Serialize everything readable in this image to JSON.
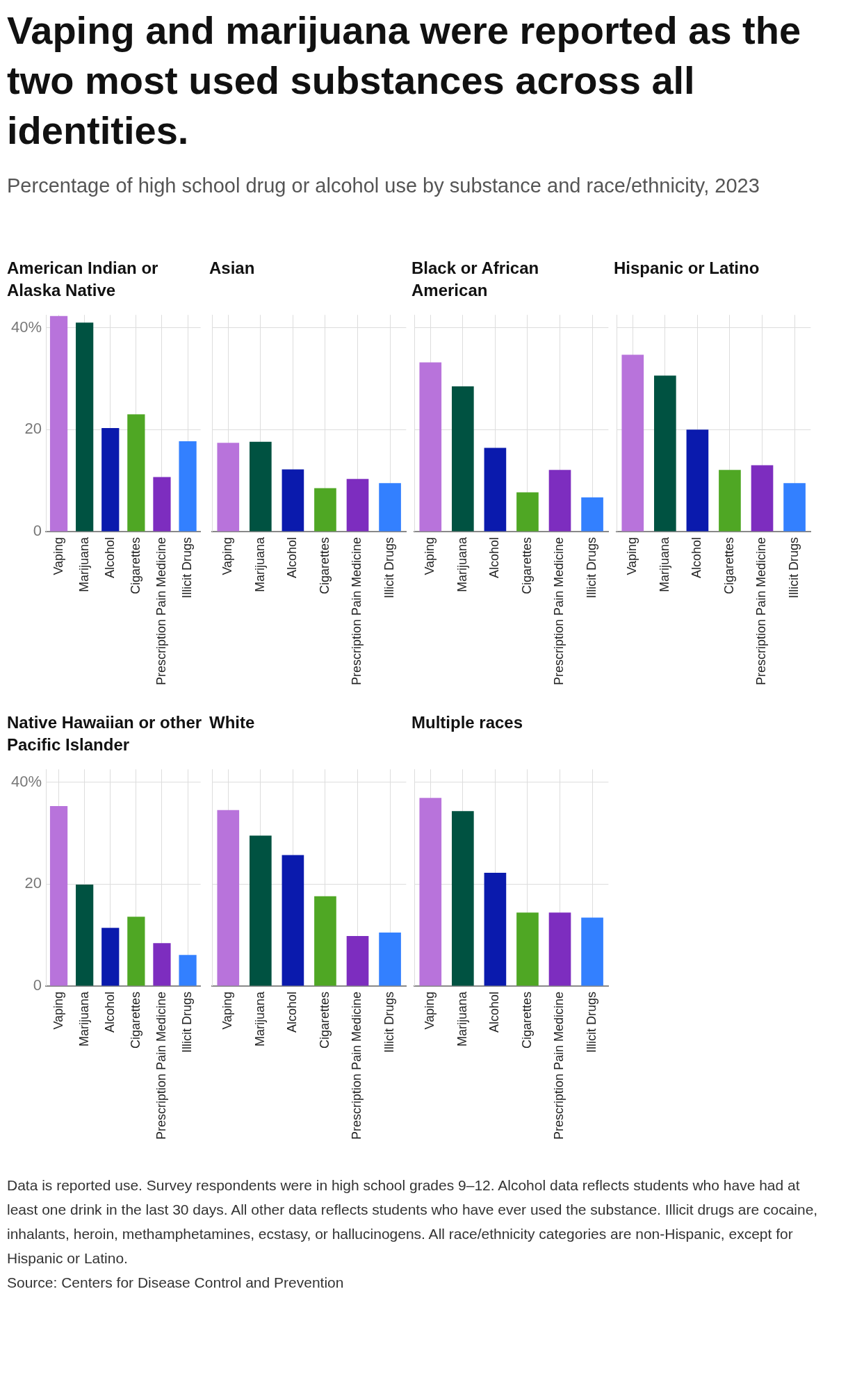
{
  "chart_data": [
    {
      "type": "other",
      "title": "Vaping and marijuana were reported as the two most used substances across all identities.",
      "subtitle": "Percentage of high school drug or alcohol use by substance and race/ethnicity, 2023"
    },
    {
      "type": "bar",
      "title": "American Indian or Alaska Native",
      "categories": [
        "Vaping",
        "Marijuana",
        "Alcohol",
        "Cigarettes",
        "Prescription Pain Medicine",
        "Illicit Drugs"
      ],
      "values": [
        42.3,
        41.0,
        20.3,
        23.0,
        10.7,
        17.7
      ],
      "colors": [
        "#b873db",
        "#005241",
        "#0a1aad",
        "#4fa724",
        "#7d2dbf",
        "#3380ff"
      ],
      "ylim": [
        0,
        42.5
      ],
      "yticks": [
        0,
        20,
        {
          "value": 40,
          "label": "40%"
        }
      ],
      "grid": true
    },
    {
      "type": "bar",
      "title": "Asian",
      "categories": [
        "Vaping",
        "Marijuana",
        "Alcohol",
        "Cigarettes",
        "Prescription Pain Medicine",
        "Illicit Drugs"
      ],
      "values": [
        17.4,
        17.6,
        12.2,
        8.5,
        10.3,
        9.5
      ],
      "colors": [
        "#b873db",
        "#005241",
        "#0a1aad",
        "#4fa724",
        "#7d2dbf",
        "#3380ff"
      ],
      "ylim": [
        0,
        42.5
      ],
      "yticks": [
        0,
        20,
        40
      ],
      "grid": true,
      "tick_labels": "x"
    },
    {
      "type": "bar",
      "title": "Black or African American",
      "categories": [
        "Vaping",
        "Marijuana",
        "Alcohol",
        "Cigarettes",
        "Prescription Pain Medicine",
        "Illicit Drugs"
      ],
      "values": [
        33.2,
        28.5,
        16.4,
        7.7,
        12.1,
        6.7
      ],
      "colors": [
        "#b873db",
        "#005241",
        "#0a1aad",
        "#4fa724",
        "#7d2dbf",
        "#3380ff"
      ],
      "ylim": [
        0,
        42.5
      ],
      "yticks": [
        0,
        20,
        40
      ],
      "grid": true,
      "tick_labels": "x"
    },
    {
      "type": "bar",
      "title": "Hispanic or Latino",
      "categories": [
        "Vaping",
        "Marijuana",
        "Alcohol",
        "Cigarettes",
        "Prescription Pain Medicine",
        "Illicit Drugs"
      ],
      "values": [
        34.7,
        30.6,
        20.0,
        12.1,
        13.0,
        9.5
      ],
      "colors": [
        "#b873db",
        "#005241",
        "#0a1aad",
        "#4fa724",
        "#7d2dbf",
        "#3380ff"
      ],
      "ylim": [
        0,
        42.5
      ],
      "yticks": [
        0,
        20,
        40
      ],
      "grid": true,
      "tick_labels": "x"
    },
    {
      "type": "bar",
      "title": "Native Hawaiian or other Pacific Islander",
      "categories": [
        "Vaping",
        "Marijuana",
        "Alcohol",
        "Cigarettes",
        "Prescription Pain Medicine",
        "Illicit Drugs"
      ],
      "values": [
        35.3,
        19.9,
        11.4,
        13.6,
        8.4,
        6.1
      ],
      "colors": [
        "#b873db",
        "#005241",
        "#0a1aad",
        "#4fa724",
        "#7d2dbf",
        "#3380ff"
      ],
      "ylim": [
        0,
        42.5
      ],
      "yticks": [
        0,
        20,
        {
          "value": 40,
          "label": "40%"
        }
      ],
      "grid": true
    },
    {
      "type": "bar",
      "title": "White",
      "categories": [
        "Vaping",
        "Marijuana",
        "Alcohol",
        "Cigarettes",
        "Prescription Pain Medicine",
        "Illicit Drugs"
      ],
      "values": [
        34.5,
        29.5,
        25.7,
        17.6,
        9.8,
        10.5
      ],
      "colors": [
        "#b873db",
        "#005241",
        "#0a1aad",
        "#4fa724",
        "#7d2dbf",
        "#3380ff"
      ],
      "ylim": [
        0,
        42.5
      ],
      "yticks": [
        0,
        20,
        40
      ],
      "grid": true,
      "tick_labels": "x"
    },
    {
      "type": "bar",
      "title": "Multiple races",
      "categories": [
        "Vaping",
        "Marijuana",
        "Alcohol",
        "Cigarettes",
        "Prescription Pain Medicine",
        "Illicit Drugs"
      ],
      "values": [
        36.9,
        34.3,
        22.2,
        14.4,
        14.4,
        13.4
      ],
      "colors": [
        "#b873db",
        "#005241",
        "#0a1aad",
        "#4fa724",
        "#7d2dbf",
        "#3380ff"
      ],
      "ylim": [
        0,
        42.5
      ],
      "yticks": [
        0,
        20,
        40
      ],
      "grid": true,
      "tick_labels": "x"
    },
    {
      "type": "other",
      "annotations": [
        "Data is reported use. Survey respondents were in high school grades 9–12. Alcohol data reflects students who have had at least one drink in the last 30 days. All other data reflects students who have ever used the substance. Illicit drugs are cocaine, inhalants, heroin, methamphetamines, ecstasy, or hallucinogens. All race/ethnicity categories are non-Hispanic, except for Hispanic or Latino.",
        "Source: Centers for Disease Control and Prevention"
      ]
    }
  ]
}
